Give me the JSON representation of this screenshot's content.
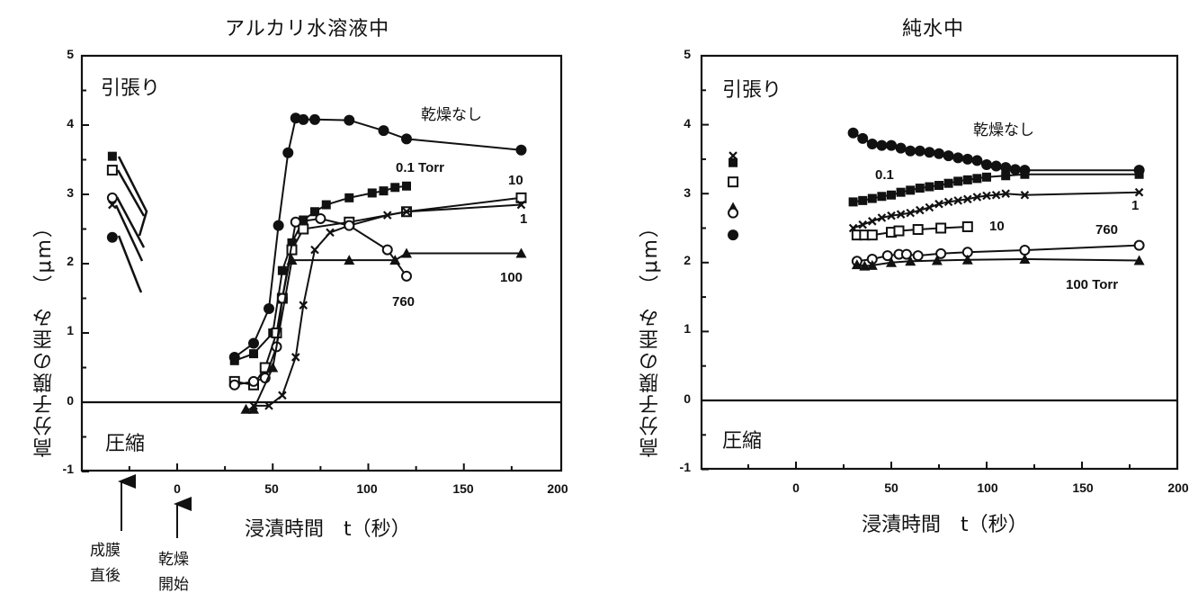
{
  "charts": {
    "left": {
      "title": "アルカリ水溶液中",
      "tension_label": "引張り",
      "compression_label": "圧縮",
      "xlabel": "浸漬時間　t（秒）",
      "ylabel": "高分子膜の歪み　（μm）",
      "yticks": [
        "5",
        "4",
        "3",
        "2",
        "1",
        "0",
        "-1"
      ],
      "xticks": [
        "0",
        "50",
        "100",
        "150",
        "200"
      ],
      "series_labels": {
        "none": "乾燥なし",
        "p01": "0.1 Torr",
        "p10": "10",
        "p1": "1",
        "p760": "760",
        "p100": "100"
      },
      "annotations": {
        "film_formed": "成膜\n直後",
        "drying_start": "乾燥\n開始"
      }
    },
    "right": {
      "title": "純水中",
      "tension_label": "引張り",
      "compression_label": "圧縮",
      "xlabel": "浸漬時間　t（秒）",
      "ylabel": "高分子膜の歪み　（μm）",
      "yticks": [
        "5",
        "4",
        "3",
        "2",
        "1",
        "0",
        "-1"
      ],
      "xticks": [
        "0",
        "50",
        "100",
        "150",
        "200"
      ],
      "series_labels": {
        "none": "乾燥なし",
        "p01": "0.1",
        "p1": "1",
        "p10": "10",
        "p760": "760",
        "p100": "100 Torr"
      }
    }
  },
  "chart_data": [
    {
      "type": "line",
      "title": "アルカリ水溶液中",
      "xlabel": "浸漬時間 t（秒）",
      "ylabel": "高分子膜の歪み （μm）",
      "xlim": [
        -50,
        200
      ],
      "ylim": [
        -1,
        5
      ],
      "xticks": [
        0,
        50,
        100,
        150,
        200
      ],
      "yticks": [
        -1,
        0,
        1,
        2,
        3,
        4,
        5
      ],
      "grid": false,
      "region_labels": {
        "upper": "引張り",
        "lower": "圧縮"
      },
      "annotations": [
        {
          "text": "成膜直後",
          "x": -30,
          "arrow": "up"
        },
        {
          "text": "乾燥開始",
          "x": 0,
          "arrow": "up"
        }
      ],
      "initial_points_after_film_formation": {
        "t": -33,
        "0.1 Torr (■)": 3.55,
        "10 (□)": 3.35,
        "760 (○)": 2.95,
        "1 (×)": 2.85,
        "乾燥なし (●)": 2.38
      },
      "series": [
        {
          "name": "乾燥なし",
          "marker": "filled-circle",
          "x": [
            30,
            40,
            48,
            53,
            58,
            62,
            66,
            72,
            90,
            108,
            120,
            180
          ],
          "y": [
            0.65,
            0.85,
            1.35,
            2.55,
            3.6,
            4.1,
            4.08,
            4.08,
            4.07,
            3.92,
            3.8,
            3.64
          ]
        },
        {
          "name": "0.1 Torr",
          "marker": "filled-square",
          "x": [
            30,
            40,
            50,
            55,
            60,
            66,
            72,
            78,
            90,
            102,
            108,
            114,
            120
          ],
          "y": [
            0.6,
            0.7,
            1.0,
            1.9,
            2.3,
            2.63,
            2.75,
            2.85,
            2.95,
            3.02,
            3.05,
            3.1,
            3.12
          ]
        },
        {
          "name": "10",
          "marker": "open-square",
          "x": [
            30,
            40,
            46,
            52,
            55,
            60,
            66,
            90,
            120,
            180
          ],
          "y": [
            0.3,
            0.25,
            0.5,
            1.0,
            1.5,
            2.2,
            2.5,
            2.6,
            2.75,
            2.95
          ]
        },
        {
          "name": "1",
          "marker": "cross",
          "x": [
            40,
            48,
            55,
            62,
            66,
            72,
            80,
            90,
            110,
            120,
            180
          ],
          "y": [
            -0.05,
            -0.05,
            0.1,
            0.65,
            1.4,
            2.2,
            2.45,
            2.55,
            2.7,
            2.75,
            2.85
          ]
        },
        {
          "name": "760",
          "marker": "open-circle",
          "x": [
            30,
            40,
            46,
            52,
            55,
            62,
            75,
            90,
            110,
            120
          ],
          "y": [
            0.25,
            0.3,
            0.35,
            0.8,
            1.5,
            2.6,
            2.65,
            2.55,
            2.2,
            1.82
          ]
        },
        {
          "name": "100",
          "marker": "filled-triangle",
          "x": [
            36,
            40,
            50,
            60,
            90,
            114,
            120,
            180
          ],
          "y": [
            -0.1,
            -0.1,
            0.5,
            2.05,
            2.05,
            2.05,
            2.15,
            2.15
          ]
        }
      ]
    },
    {
      "type": "line",
      "title": "純水中",
      "xlabel": "浸漬時間 t（秒）",
      "ylabel": "高分子膜の歪み （μm）",
      "xlim": [
        -50,
        200
      ],
      "ylim": [
        -1,
        5
      ],
      "xticks": [
        0,
        50,
        100,
        150,
        200
      ],
      "yticks": [
        -1,
        0,
        1,
        2,
        3,
        4,
        5
      ],
      "grid": false,
      "region_labels": {
        "upper": "引張り",
        "lower": "圧縮"
      },
      "initial_points_after_film_formation": {
        "t": -33,
        "1 (×)": 3.55,
        "0.1 (■)": 3.45,
        "10 (□)": 3.17,
        "100 Torr (▲)": 2.8,
        "760 (○)": 2.72,
        "乾燥なし (●)": 2.4
      },
      "series": [
        {
          "name": "乾燥なし",
          "marker": "filled-circle",
          "x": [
            30,
            35,
            40,
            45,
            50,
            55,
            60,
            65,
            70,
            75,
            80,
            85,
            90,
            95,
            100,
            105,
            110,
            115,
            120,
            180
          ],
          "y": [
            3.88,
            3.8,
            3.72,
            3.7,
            3.7,
            3.66,
            3.62,
            3.62,
            3.6,
            3.58,
            3.55,
            3.52,
            3.5,
            3.48,
            3.42,
            3.4,
            3.38,
            3.35,
            3.34,
            3.34
          ]
        },
        {
          "name": "0.1",
          "marker": "filled-square",
          "x": [
            30,
            35,
            40,
            45,
            50,
            55,
            60,
            65,
            70,
            75,
            80,
            85,
            90,
            95,
            100,
            110,
            120,
            180
          ],
          "y": [
            2.88,
            2.9,
            2.93,
            2.96,
            2.98,
            3.02,
            3.05,
            3.08,
            3.1,
            3.12,
            3.15,
            3.18,
            3.2,
            3.22,
            3.24,
            3.26,
            3.28,
            3.28
          ]
        },
        {
          "name": "1",
          "marker": "cross",
          "x": [
            30,
            35,
            40,
            45,
            50,
            55,
            60,
            65,
            70,
            75,
            80,
            85,
            90,
            95,
            100,
            105,
            110,
            120,
            180
          ],
          "y": [
            2.5,
            2.55,
            2.6,
            2.65,
            2.68,
            2.7,
            2.72,
            2.76,
            2.8,
            2.85,
            2.88,
            2.9,
            2.92,
            2.95,
            2.97,
            2.98,
            3.0,
            2.98,
            3.02
          ]
        },
        {
          "name": "10",
          "marker": "open-square",
          "x": [
            32,
            36,
            40,
            50,
            54,
            64,
            76,
            90
          ],
          "y": [
            2.4,
            2.4,
            2.4,
            2.44,
            2.46,
            2.48,
            2.5,
            2.52
          ]
        },
        {
          "name": "760",
          "marker": "open-circle",
          "x": [
            32,
            40,
            48,
            54,
            58,
            64,
            76,
            90,
            120,
            180
          ],
          "y": [
            2.02,
            2.05,
            2.1,
            2.12,
            2.12,
            2.1,
            2.13,
            2.15,
            2.18,
            2.25
          ]
        },
        {
          "name": "100 Torr",
          "marker": "filled-triangle",
          "x": [
            32,
            36,
            40,
            50,
            60,
            74,
            90,
            120,
            180
          ],
          "y": [
            1.97,
            1.95,
            1.96,
            2.0,
            2.02,
            2.03,
            2.04,
            2.05,
            2.03
          ]
        }
      ]
    }
  ]
}
